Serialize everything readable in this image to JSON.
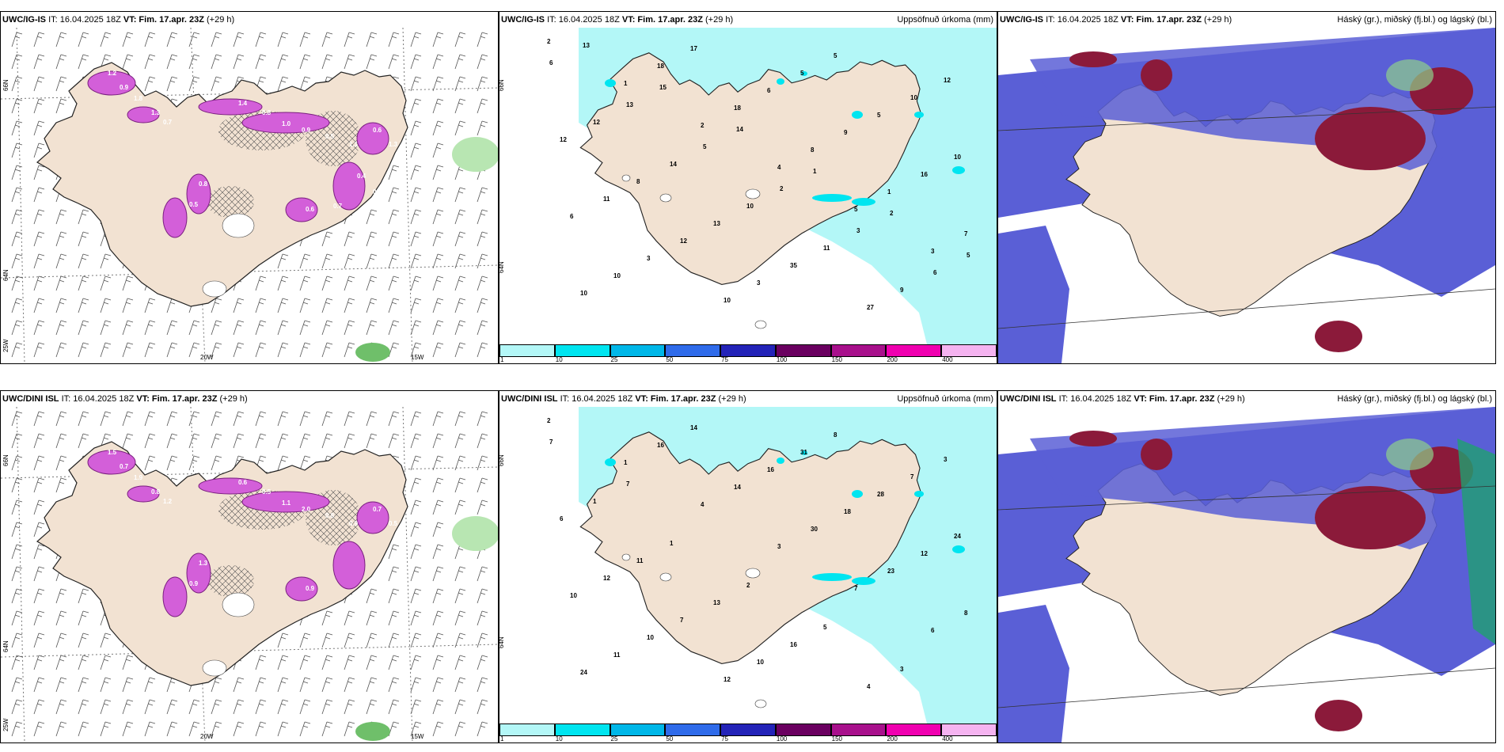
{
  "panels": {
    "tl": {
      "model": "UWC/IG-IS",
      "it": "IT: 16.04.2025 18Z",
      "vt": "VT: Fim. 17.apr. 23Z",
      "lead": "(+29 h)",
      "right_title": ""
    },
    "tm": {
      "model": "UWC/IG-IS",
      "it": "IT: 16.04.2025 18Z",
      "vt": "VT: Fim. 17.apr. 23Z",
      "lead": "(+29 h)",
      "right_title": "Uppsöfnuð úrkoma (mm)"
    },
    "tr": {
      "model": "UWC/IG-IS",
      "it": "IT: 16.04.2025 18Z",
      "vt": "VT: Fim. 17.apr. 23Z",
      "lead": "(+29 h)",
      "right_title": "Háský (gr.), miðský (fj.bl.) og lágský (bl.)"
    },
    "bl": {
      "model": "UWC/DINI ISL",
      "it": "IT: 16.04.2025 18Z",
      "vt": "VT: Fim. 17.apr. 23Z",
      "lead": "(+29 h)",
      "right_title": ""
    },
    "bm": {
      "model": "UWC/DINI ISL",
      "it": "IT: 16.04.2025 18Z",
      "vt": "VT: Fim. 17.apr. 23Z",
      "lead": "(+29 h)",
      "right_title": "Uppsöfnuð úrkoma (mm)"
    },
    "br": {
      "model": "UWC/DINI ISL",
      "it": "IT: 16.04.2025 18Z",
      "vt": "VT: Fim. 17.apr. 23Z",
      "lead": "(+29 h)",
      "right_title": "Háský (gr.), miðský (fj.bl.) og lágský (bl.)"
    }
  },
  "axis_labels": {
    "lat66": "66N",
    "lat64": "64N",
    "lon25": "25W",
    "lon20": "20W",
    "lon15": "15W"
  },
  "colorbar": {
    "ticks": [
      "1",
      "10",
      "25",
      "50",
      "75",
      "100",
      "150",
      "200",
      "400"
    ],
    "colors": [
      "#b3f7f7",
      "#00e5f0",
      "#00b7e8",
      "#2f6bea",
      "#2323b8",
      "#6a0060",
      "#a8108c",
      "#f000b0",
      "#f5b3f0"
    ]
  },
  "precip_labels": {
    "top": [
      "2",
      "1",
      "2",
      "4",
      "5",
      "3",
      "10",
      "18",
      "18",
      "8",
      "1",
      "7",
      "10",
      "17",
      "6",
      "9",
      "16",
      "6",
      "3",
      "10",
      "5",
      "5",
      "10",
      "11",
      "12",
      "3",
      "5",
      "10",
      "12",
      "8",
      "13",
      "35",
      "27",
      "12",
      "12",
      "14",
      "10",
      "11",
      "9",
      "6",
      "13",
      "5",
      "2",
      "3",
      "6",
      "13",
      "15",
      "14",
      "1",
      "2",
      "5"
    ],
    "bottom": [
      "2",
      "1",
      "4",
      "3",
      "7",
      "6",
      "24",
      "16",
      "14",
      "30",
      "23",
      "8",
      "11",
      "14",
      "16",
      "18",
      "12",
      "10",
      "10",
      "12",
      "31",
      "28",
      "24",
      "12",
      "7",
      "10",
      "8",
      "7",
      "6",
      "11",
      "13",
      "16",
      "4",
      "3",
      "1",
      "1",
      "2",
      "5",
      "3",
      "7",
      "7"
    ]
  },
  "wind_values": {
    "top": [
      "1.2",
      "0.9",
      "1.8",
      "1.3",
      "0.7",
      "1.4",
      "0.8",
      "1.0",
      "0.9",
      "0.5",
      "1.1",
      "0.6",
      "1.3",
      "0.8",
      "0.5",
      "0.6",
      "0.7",
      "0.4",
      "0.7"
    ],
    "bottom": [
      "1.5",
      "0.7",
      "1.9",
      "0.8",
      "1.2",
      "0.6",
      "0.5",
      "1.1",
      "2.0",
      "0.8",
      "0.9",
      "0.7",
      "0.5",
      "1.3",
      "0.9",
      "0.9"
    ]
  }
}
